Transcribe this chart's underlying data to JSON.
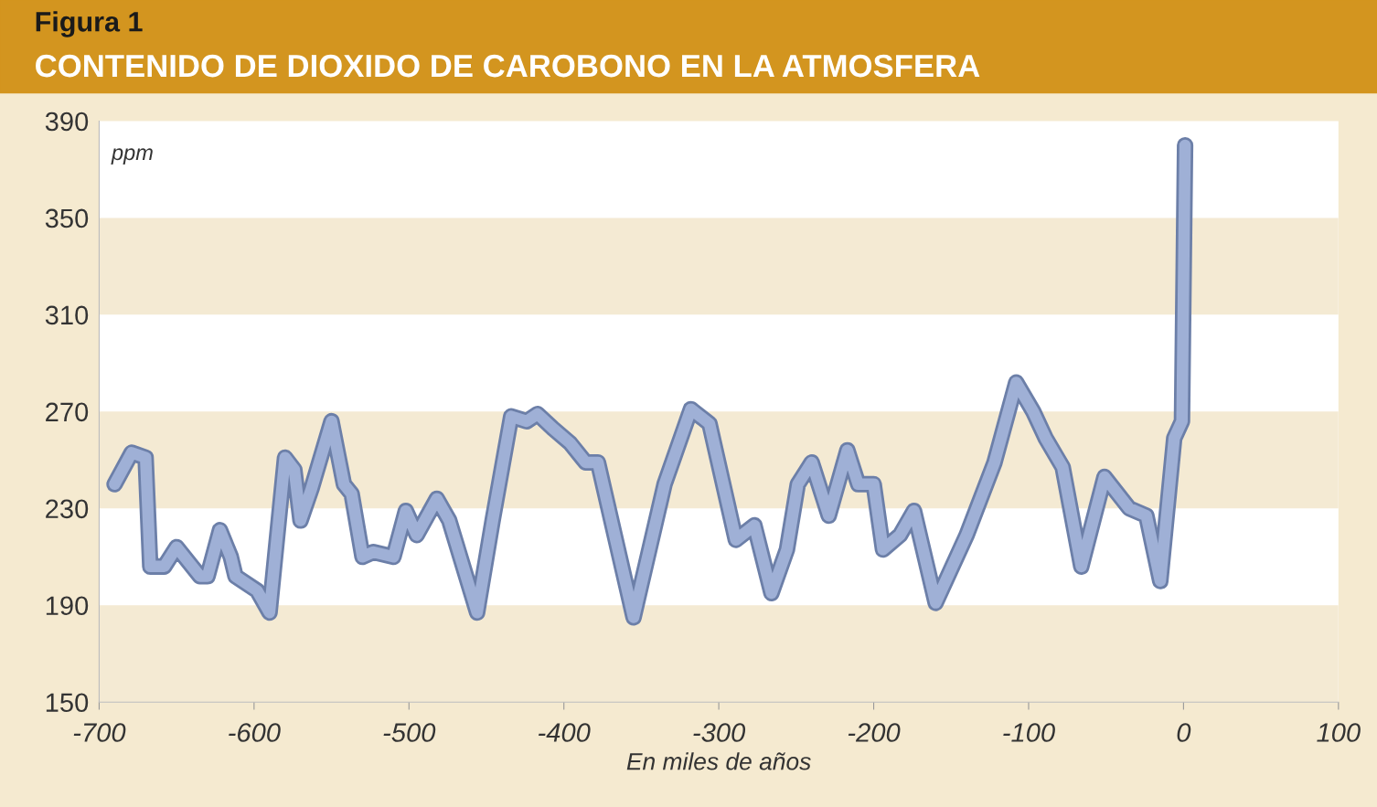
{
  "chart_data": {
    "type": "line",
    "title": "Figura 1",
    "subtitle": "CONTENIDO DE DIOXIDO DE CAROBONO EN LA ATMOSFERA",
    "xlabel": "En miles de años",
    "ylabel": "ppm",
    "x": [
      -690,
      -679,
      -670,
      -667,
      -658,
      -650,
      -635,
      -630,
      -622,
      -615,
      -612,
      -598,
      -590,
      -580,
      -574,
      -570,
      -563,
      -550,
      -542,
      -537,
      -530,
      -523,
      -510,
      -502,
      -495,
      -482,
      -474,
      -456,
      -446,
      -434,
      -424,
      -417,
      -407,
      -396,
      -386,
      -378,
      -355,
      -335,
      -318,
      -306,
      -289,
      -277,
      -266,
      -256,
      -249,
      -240,
      -229,
      -217,
      -210,
      -200,
      -194,
      -183,
      -174,
      -160,
      -140,
      -122,
      -108,
      -97,
      -89,
      -78,
      -66,
      -51,
      -35,
      -24,
      -15,
      -6,
      -1,
      1
    ],
    "series": [
      {
        "color": "#9fb0d6",
        "values": [
          240,
          253,
          251,
          206,
          206,
          214,
          202,
          202,
          221,
          210,
          202,
          196,
          187,
          251,
          246,
          225,
          238,
          266,
          240,
          236,
          210,
          212,
          210,
          229,
          219,
          234,
          225,
          187,
          225,
          268,
          266,
          269,
          263,
          257,
          249,
          249,
          185,
          240,
          271,
          265,
          217,
          223,
          195,
          213,
          240,
          249,
          227,
          254,
          240,
          240,
          213,
          219,
          229,
          191,
          219,
          249,
          282,
          270,
          259,
          247,
          206,
          243,
          230,
          227,
          200,
          259,
          266,
          380
        ]
      }
    ],
    "xlim": [
      -700,
      100
    ],
    "xticks": [
      -700,
      -600,
      -500,
      -400,
      -300,
      -200,
      -100,
      0,
      100
    ],
    "ylim": [
      150,
      390
    ],
    "yticks": [
      150,
      190,
      230,
      270,
      310,
      350,
      390
    ],
    "bands": [
      {
        "axis": "y",
        "from": 150,
        "to": 190,
        "color": "#f4ead3"
      },
      {
        "axis": "y",
        "from": 230,
        "to": 270,
        "color": "#f4ead3"
      },
      {
        "axis": "y",
        "from": 310,
        "to": 350,
        "color": "#f4ead3"
      }
    ],
    "grid": false,
    "legend": false,
    "marker": "none",
    "line_style": "solid"
  }
}
